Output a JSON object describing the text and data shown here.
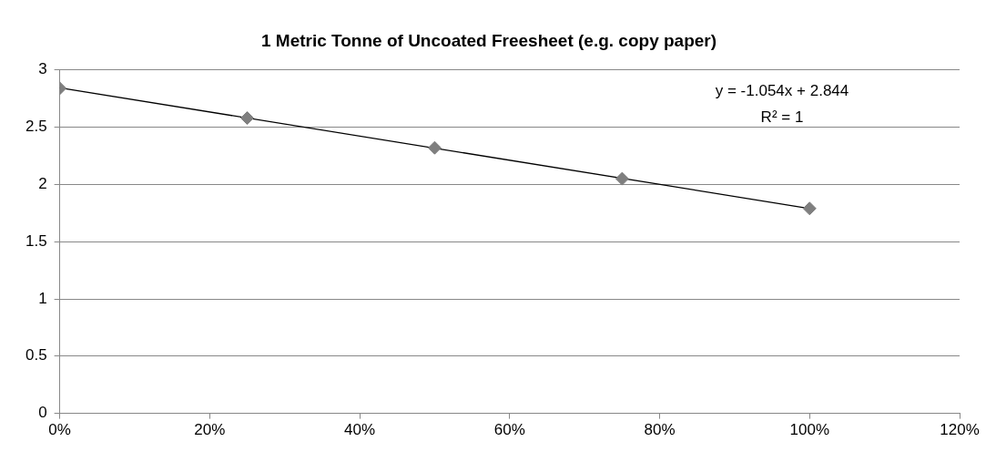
{
  "chart_data": {
    "type": "scatter",
    "title": "1 Metric Tonne of Uncoated Freesheet (e.g. copy paper)",
    "x": [
      0,
      25,
      50,
      75,
      100
    ],
    "series": [
      {
        "color": "#7f7f7f",
        "values": [
          2.84,
          2.58,
          2.32,
          2.05,
          1.79
        ]
      },
      {
        "type": "line",
        "marker": "none",
        "color": "#000000",
        "x": [
          0,
          100
        ],
        "values": [
          2.844,
          1.79
        ]
      }
    ],
    "xlim": [
      0,
      120
    ],
    "xticks": [
      {
        "value": 0,
        "label": "0%"
      },
      {
        "value": 20,
        "label": "20%"
      },
      {
        "value": 40,
        "label": "40%"
      },
      {
        "value": 60,
        "label": "60%"
      },
      {
        "value": 80,
        "label": "80%"
      },
      {
        "value": 100,
        "label": "100%"
      },
      {
        "value": 120,
        "label": "120%"
      }
    ],
    "ylim": [
      0,
      3
    ],
    "yticks": [
      0,
      0.5,
      1,
      1.5,
      2,
      2.5,
      3
    ],
    "grid": "y",
    "marker": "diamond",
    "line_style": "solid",
    "annotations": [
      "y = -1.054x + 2.844",
      "R² = 1"
    ]
  }
}
